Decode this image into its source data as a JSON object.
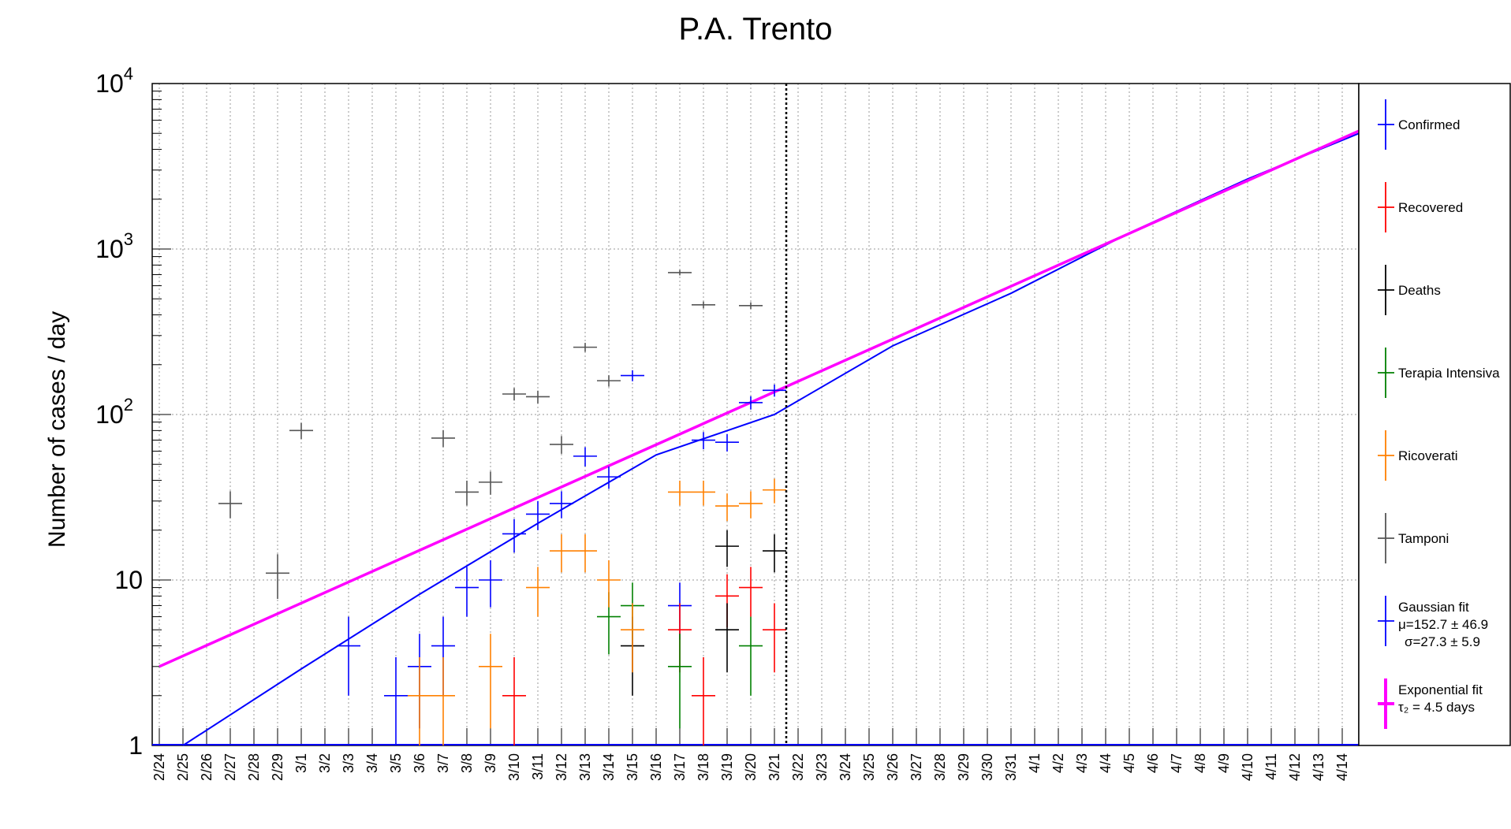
{
  "chart_data": {
    "type": "scatter",
    "title": "P.A. Trento",
    "xlabel": "",
    "ylabel": "Number of cases / day",
    "yscale": "log",
    "ylim": [
      1,
      10000
    ],
    "grid": true,
    "legend_position": "right",
    "categories": [
      "2/24",
      "2/25",
      "2/26",
      "2/27",
      "2/28",
      "2/29",
      "3/1",
      "3/2",
      "3/3",
      "3/4",
      "3/5",
      "3/6",
      "3/7",
      "3/8",
      "3/9",
      "3/10",
      "3/11",
      "3/12",
      "3/13",
      "3/14",
      "3/15",
      "3/16",
      "3/17",
      "3/18",
      "3/19",
      "3/20",
      "3/21",
      "3/22",
      "3/23",
      "3/24",
      "3/25",
      "3/26",
      "3/27",
      "3/28",
      "3/29",
      "3/30",
      "3/31",
      "4/1",
      "4/2",
      "4/3",
      "4/4",
      "4/5",
      "4/6",
      "4/7",
      "4/8",
      "4/9",
      "4/10",
      "4/11",
      "4/12",
      "4/13",
      "4/14"
    ],
    "y_ticks": [
      {
        "value": 1,
        "base": "1",
        "exp": ""
      },
      {
        "value": 10,
        "base": "10",
        "exp": ""
      },
      {
        "value": 100,
        "base": "10",
        "exp": "2"
      },
      {
        "value": 1000,
        "base": "10",
        "exp": "3"
      },
      {
        "value": 10000,
        "base": "10",
        "exp": "4"
      }
    ],
    "cutoff_date": "3/21",
    "series": [
      {
        "name": "Confirmed",
        "color": "#0000ff",
        "points": [
          [
            "3/3",
            4
          ],
          [
            "3/5",
            2
          ],
          [
            "3/6",
            3
          ],
          [
            "3/7",
            4
          ],
          [
            "3/8",
            9
          ],
          [
            "3/9",
            10
          ],
          [
            "3/10",
            19
          ],
          [
            "3/11",
            25
          ],
          [
            "3/12",
            29
          ],
          [
            "3/13",
            56
          ],
          [
            "3/14",
            42
          ],
          [
            "3/15",
            172
          ],
          [
            "3/17",
            7
          ],
          [
            "3/18",
            70
          ],
          [
            "3/19",
            68
          ],
          [
            "3/20",
            118
          ],
          [
            "3/21",
            140
          ]
        ]
      },
      {
        "name": "Recovered",
        "color": "#ff0000",
        "points": [
          [
            "3/10",
            2
          ],
          [
            "3/17",
            5
          ],
          [
            "3/18",
            2
          ],
          [
            "3/19",
            8
          ],
          [
            "3/20",
            9
          ],
          [
            "3/21",
            5
          ]
        ]
      },
      {
        "name": "Deaths",
        "color": "#000000",
        "points": [
          [
            "3/15",
            4
          ],
          [
            "3/19",
            5
          ],
          [
            "3/19",
            16
          ],
          [
            "3/21",
            15
          ]
        ]
      },
      {
        "name": "Terapia Intensiva",
        "color": "#008000",
        "points": [
          [
            "3/14",
            6
          ],
          [
            "3/15",
            7
          ],
          [
            "3/17",
            3
          ],
          [
            "3/20",
            4
          ]
        ]
      },
      {
        "name": "Ricoverati",
        "color": "#ff8000",
        "points": [
          [
            "3/6",
            2
          ],
          [
            "3/7",
            2
          ],
          [
            "3/9",
            3
          ],
          [
            "3/11",
            9
          ],
          [
            "3/12",
            15
          ],
          [
            "3/13",
            15
          ],
          [
            "3/14",
            10
          ],
          [
            "3/15",
            5
          ],
          [
            "3/17",
            34
          ],
          [
            "3/18",
            34
          ],
          [
            "3/19",
            28
          ],
          [
            "3/20",
            29
          ],
          [
            "3/21",
            35
          ]
        ]
      },
      {
        "name": "Tamponi",
        "color": "#555555",
        "points": [
          [
            "2/27",
            29
          ],
          [
            "2/29",
            11
          ],
          [
            "3/1",
            80
          ],
          [
            "3/7",
            72
          ],
          [
            "3/8",
            34
          ],
          [
            "3/9",
            39
          ],
          [
            "3/10",
            133
          ],
          [
            "3/11",
            128
          ],
          [
            "3/12",
            66
          ],
          [
            "3/13",
            255
          ],
          [
            "3/14",
            160
          ],
          [
            "3/17",
            720
          ],
          [
            "3/18",
            460
          ],
          [
            "3/20",
            455
          ]
        ]
      }
    ],
    "fits": [
      {
        "name": "Gaussian fit",
        "params": [
          "μ=152.7 ± 46.9",
          "σ=27.3 ± 5.9"
        ],
        "color": "#0000ff",
        "curve": [
          [
            "2/25",
            1
          ],
          [
            "3/1",
            2.9
          ],
          [
            "3/6",
            8.2
          ],
          [
            "3/11",
            22
          ],
          [
            "3/16",
            57
          ],
          [
            "3/21",
            100
          ],
          [
            "3/26",
            260
          ],
          [
            "3/31",
            540
          ],
          [
            "4/5",
            1250
          ],
          [
            "4/10",
            2650
          ],
          [
            "4/15",
            5200
          ]
        ]
      },
      {
        "name": "Exponential fit",
        "params": [
          "τ₂ = 4.5 days"
        ],
        "color": "#ff00ff",
        "curve": [
          [
            "2/24",
            3
          ],
          [
            "4/15",
            5400
          ]
        ]
      }
    ]
  }
}
